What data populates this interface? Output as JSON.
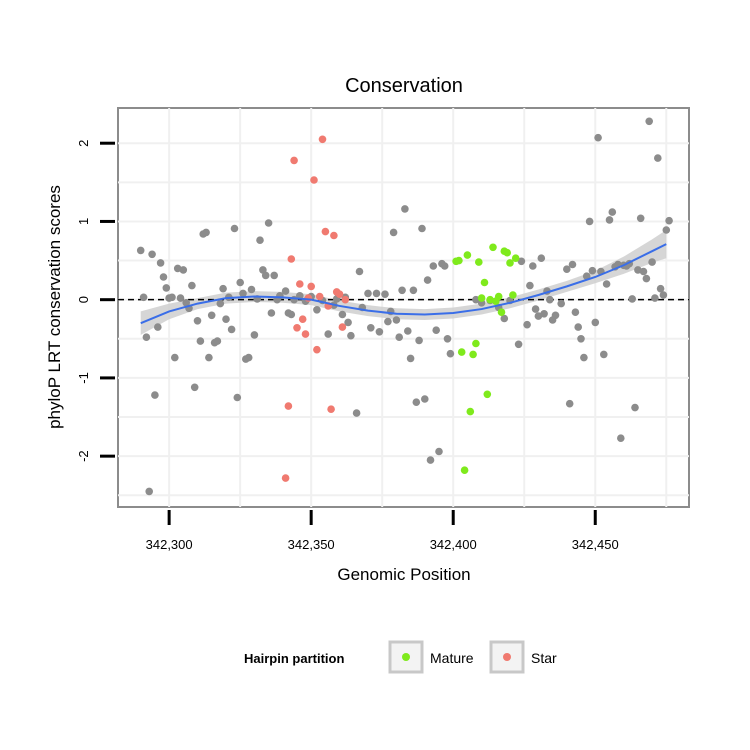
{
  "chart_data": {
    "type": "scatter",
    "title": "Conservation",
    "xlabel": "Genomic Position",
    "ylabel": "phyloP LRT conservation scores",
    "xlim": [
      342282,
      342483
    ],
    "ylim": [
      -2.65,
      2.45
    ],
    "x_ticks": [
      342300,
      342350,
      342400,
      342450
    ],
    "x_tick_labels": [
      "342,300",
      "342,350",
      "342,400",
      "342,450"
    ],
    "y_ticks": [
      -2,
      -1,
      0,
      1,
      2
    ],
    "y_tick_labels": [
      "-2",
      "-1",
      "0",
      "1",
      "2"
    ],
    "grid": true,
    "reference_line": {
      "y": 0,
      "style": "dashed"
    },
    "legend": {
      "title": "Hairpin partition",
      "position": "bottom",
      "entries": [
        {
          "label": "Mature",
          "color": "#7fea1c"
        },
        {
          "label": "Star",
          "color": "#f07a70"
        }
      ]
    },
    "colors": {
      "other": "#8c8c8c",
      "mature": "#7fea1c",
      "star": "#f07a70",
      "smooth": "#3a6ee8",
      "band": "#cfcfcf"
    },
    "series": [
      {
        "group": "other",
        "points": [
          [
            342290,
            0.63
          ],
          [
            342291,
            0.03
          ],
          [
            342292,
            -0.48
          ],
          [
            342293,
            -2.45
          ],
          [
            342294,
            0.58
          ],
          [
            342295,
            -1.22
          ],
          [
            342296,
            -0.35
          ],
          [
            342297,
            0.47
          ],
          [
            342298,
            0.29
          ],
          [
            342299,
            0.15
          ],
          [
            342300,
            0.02
          ],
          [
            342301,
            0.03
          ],
          [
            342302,
            -0.74
          ],
          [
            342303,
            0.4
          ],
          [
            342304,
            0.02
          ],
          [
            342305,
            0.38
          ],
          [
            342306,
            -0.04
          ],
          [
            342307,
            -0.11
          ],
          [
            342308,
            0.18
          ],
          [
            342309,
            -1.12
          ],
          [
            342310,
            -0.27
          ],
          [
            342311,
            -0.53
          ],
          [
            342312,
            0.84
          ],
          [
            342313,
            0.86
          ],
          [
            342314,
            -0.74
          ],
          [
            342315,
            -0.2
          ],
          [
            342316,
            -0.55
          ],
          [
            342317,
            -0.53
          ],
          [
            342318,
            -0.05
          ],
          [
            342319,
            0.14
          ],
          [
            342320,
            -0.25
          ],
          [
            342321,
            0.03
          ],
          [
            342322,
            -0.38
          ],
          [
            342323,
            0.91
          ],
          [
            342324,
            -1.25
          ],
          [
            342325,
            0.22
          ],
          [
            342326,
            0.08
          ],
          [
            342327,
            -0.76
          ],
          [
            342328,
            -0.74
          ],
          [
            342329,
            0.13
          ],
          [
            342330,
            -0.45
          ],
          [
            342331,
            0.01
          ],
          [
            342332,
            0.76
          ],
          [
            342333,
            0.38
          ],
          [
            342334,
            0.31
          ],
          [
            342335,
            0.98
          ],
          [
            342336,
            -0.17
          ],
          [
            342337,
            0.31
          ],
          [
            342338,
            0.0
          ],
          [
            342339,
            0.05
          ],
          [
            342341,
            0.11
          ],
          [
            342342,
            -0.17
          ],
          [
            342343,
            -0.19
          ],
          [
            342344,
            0.0
          ],
          [
            342346,
            0.05
          ],
          [
            342348,
            -0.02
          ],
          [
            342350,
            0.04
          ],
          [
            342352,
            -0.13
          ],
          [
            342354,
            -0.01
          ],
          [
            342356,
            -0.44
          ],
          [
            342358,
            -0.07
          ],
          [
            342359,
            0.01
          ],
          [
            342361,
            -0.19
          ],
          [
            342362,
            0.03
          ],
          [
            342363,
            -0.29
          ],
          [
            342364,
            -0.46
          ],
          [
            342366,
            -1.45
          ],
          [
            342367,
            0.36
          ],
          [
            342368,
            -0.1
          ],
          [
            342370,
            0.08
          ],
          [
            342371,
            -0.36
          ],
          [
            342373,
            0.08
          ],
          [
            342374,
            -0.41
          ],
          [
            342376,
            0.07
          ],
          [
            342377,
            -0.28
          ],
          [
            342378,
            -0.15
          ],
          [
            342379,
            0.86
          ],
          [
            342380,
            -0.26
          ],
          [
            342381,
            -0.48
          ],
          [
            342382,
            0.12
          ],
          [
            342383,
            1.16
          ],
          [
            342384,
            -0.4
          ],
          [
            342385,
            -0.75
          ],
          [
            342386,
            0.12
          ],
          [
            342387,
            -1.31
          ],
          [
            342388,
            -0.52
          ],
          [
            342389,
            0.91
          ],
          [
            342390,
            -1.27
          ],
          [
            342391,
            0.25
          ],
          [
            342392,
            -2.05
          ],
          [
            342393,
            0.43
          ],
          [
            342394,
            -0.39
          ],
          [
            342395,
            -1.94
          ],
          [
            342396,
            0.46
          ],
          [
            342397,
            0.43
          ],
          [
            342398,
            -0.5
          ],
          [
            342399,
            -0.69
          ],
          [
            342408,
            0.0
          ],
          [
            342410,
            -0.04
          ],
          [
            342413,
            -0.01
          ],
          [
            342416,
            -0.1
          ],
          [
            342418,
            -0.24
          ],
          [
            342420,
            -0.01
          ],
          [
            342423,
            -0.57
          ],
          [
            342424,
            0.49
          ],
          [
            342426,
            -0.32
          ],
          [
            342427,
            0.18
          ],
          [
            342428,
            0.43
          ],
          [
            342429,
            -0.12
          ],
          [
            342430,
            -0.21
          ],
          [
            342431,
            0.53
          ],
          [
            342432,
            -0.18
          ],
          [
            342433,
            0.11
          ],
          [
            342434,
            0.0
          ],
          [
            342435,
            -0.26
          ],
          [
            342436,
            -0.2
          ],
          [
            342438,
            -0.05
          ],
          [
            342440,
            0.39
          ],
          [
            342441,
            -1.33
          ],
          [
            342442,
            0.45
          ],
          [
            342443,
            -0.16
          ],
          [
            342444,
            -0.35
          ],
          [
            342445,
            -0.5
          ],
          [
            342446,
            -0.74
          ],
          [
            342447,
            0.3
          ],
          [
            342448,
            1.0
          ],
          [
            342449,
            0.37
          ],
          [
            342450,
            -0.29
          ],
          [
            342451,
            2.07
          ],
          [
            342452,
            0.36
          ],
          [
            342453,
            -0.7
          ],
          [
            342454,
            0.2
          ],
          [
            342455,
            1.02
          ],
          [
            342456,
            1.12
          ],
          [
            342457,
            0.42
          ],
          [
            342458,
            0.45
          ],
          [
            342459,
            -1.77
          ],
          [
            342460,
            0.44
          ],
          [
            342461,
            0.43
          ],
          [
            342462,
            0.46
          ],
          [
            342463,
            0.01
          ],
          [
            342464,
            -1.38
          ],
          [
            342465,
            0.38
          ],
          [
            342466,
            1.04
          ],
          [
            342467,
            0.36
          ],
          [
            342468,
            0.27
          ],
          [
            342469,
            2.28
          ],
          [
            342470,
            0.48
          ],
          [
            342471,
            0.02
          ],
          [
            342472,
            1.81
          ],
          [
            342473,
            0.14
          ],
          [
            342474,
            0.06
          ],
          [
            342475,
            0.89
          ],
          [
            342476,
            1.01
          ]
        ]
      },
      {
        "group": "mature",
        "name": "Mature",
        "points": [
          [
            342401,
            0.49
          ],
          [
            342402,
            0.5
          ],
          [
            342403,
            -0.67
          ],
          [
            342404,
            -2.18
          ],
          [
            342405,
            0.57
          ],
          [
            342406,
            -1.43
          ],
          [
            342407,
            -0.7
          ],
          [
            342408,
            -0.56
          ],
          [
            342409,
            0.48
          ],
          [
            342410,
            0.02
          ],
          [
            342411,
            0.22
          ],
          [
            342412,
            -1.21
          ],
          [
            342413,
            0.0
          ],
          [
            342414,
            0.67
          ],
          [
            342415,
            -0.02
          ],
          [
            342416,
            0.04
          ],
          [
            342417,
            -0.16
          ],
          [
            342418,
            0.62
          ],
          [
            342419,
            0.6
          ],
          [
            342420,
            0.47
          ],
          [
            342421,
            0.06
          ],
          [
            342422,
            0.53
          ]
        ]
      },
      {
        "group": "star",
        "name": "Star",
        "points": [
          [
            342341,
            -2.28
          ],
          [
            342342,
            -1.36
          ],
          [
            342343,
            0.52
          ],
          [
            342344,
            1.78
          ],
          [
            342345,
            -0.36
          ],
          [
            342346,
            0.2
          ],
          [
            342347,
            -0.25
          ],
          [
            342348,
            -0.44
          ],
          [
            342349,
            0.02
          ],
          [
            342350,
            0.17
          ],
          [
            342351,
            1.53
          ],
          [
            342352,
            -0.64
          ],
          [
            342353,
            0.04
          ],
          [
            342354,
            2.05
          ],
          [
            342355,
            0.87
          ],
          [
            342356,
            -0.08
          ],
          [
            342357,
            -1.4
          ],
          [
            342358,
            0.82
          ],
          [
            342359,
            0.1
          ],
          [
            342360,
            0.07
          ],
          [
            342361,
            -0.35
          ],
          [
            342362,
            0.0
          ]
        ]
      }
    ],
    "smooth_line": {
      "method": "loess",
      "x": [
        342290,
        342300,
        342310,
        342320,
        342330,
        342340,
        342350,
        342360,
        342370,
        342380,
        342390,
        342400,
        342410,
        342420,
        342430,
        342440,
        342450,
        342460,
        342470,
        342475
      ],
      "y": [
        -0.3,
        -0.15,
        -0.05,
        0.02,
        0.04,
        0.03,
        0.0,
        -0.08,
        -0.14,
        -0.18,
        -0.19,
        -0.17,
        -0.12,
        -0.04,
        0.06,
        0.17,
        0.29,
        0.44,
        0.62,
        0.71
      ],
      "ci_halfwidth": [
        0.15,
        0.1,
        0.07,
        0.07,
        0.07,
        0.07,
        0.07,
        0.07,
        0.07,
        0.07,
        0.07,
        0.07,
        0.07,
        0.07,
        0.07,
        0.07,
        0.08,
        0.11,
        0.15,
        0.18
      ]
    }
  }
}
